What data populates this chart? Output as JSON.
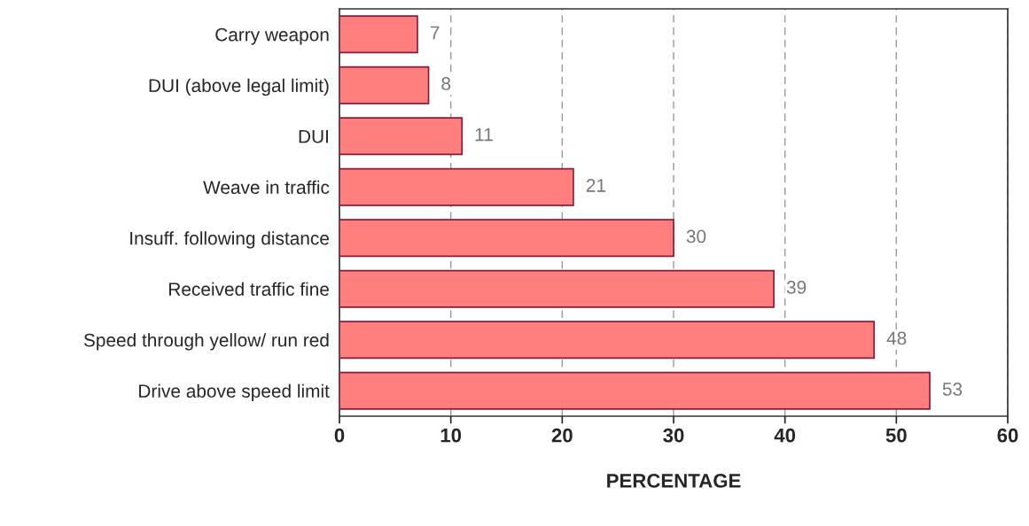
{
  "chart_data": {
    "type": "bar",
    "orientation": "horizontal",
    "xlabel": "PERCENTAGE",
    "categories": [
      "Carry weapon",
      "DUI (above legal limit)",
      "DUI",
      "Weave in traffic",
      "Insuff. following distance",
      "Received traffic fine",
      "Speed through yellow/ run red",
      "Drive above speed limit"
    ],
    "values": [
      7,
      8,
      11,
      21,
      30,
      39,
      48,
      53
    ],
    "color": "#ff7f7f",
    "xlim": [
      0,
      60
    ],
    "xticks": [
      0,
      10,
      20,
      30,
      40,
      50,
      60
    ],
    "grid": "x",
    "data_labels": true
  }
}
